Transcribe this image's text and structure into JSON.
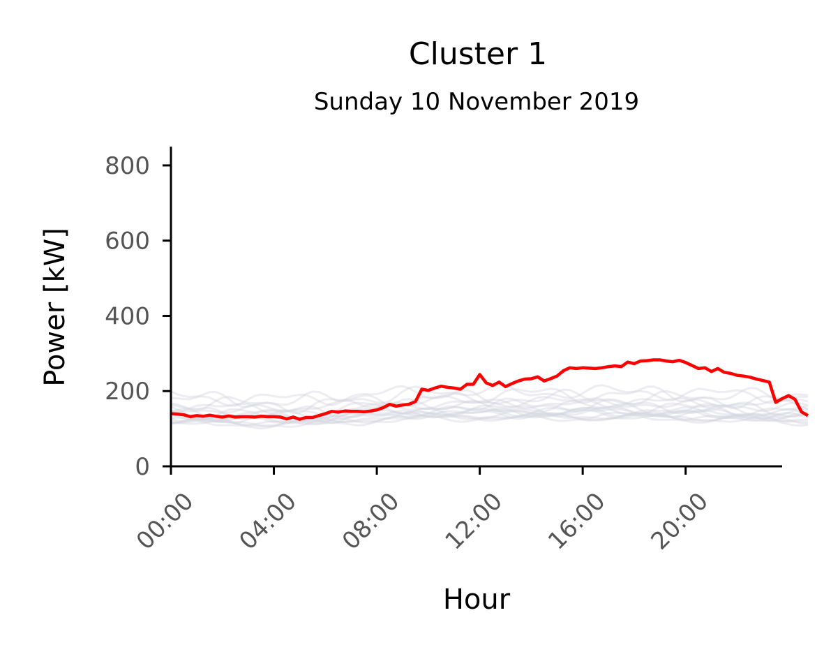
{
  "chart_data": {
    "type": "line",
    "title": "Cluster 1",
    "subtitle": "Sunday 10 November 2019",
    "xlabel": "Hour",
    "ylabel": "Power [kW]",
    "xlim": [
      0,
      23.75
    ],
    "ylim": [
      0,
      850
    ],
    "x_ticks": [
      "00:00",
      "04:00",
      "08:00",
      "12:00",
      "16:00",
      "20:00"
    ],
    "x_tick_values": [
      0,
      4,
      8,
      12,
      16,
      20
    ],
    "y_ticks": [
      0,
      200,
      400,
      600,
      800
    ],
    "grid": false,
    "colors": {
      "highlight": "#ff0000",
      "background_series": "#d4d4e0",
      "axis": "#000000",
      "tick_label": "#555555"
    },
    "series": [
      {
        "role": "highlight",
        "interval_minutes": 15,
        "x_start_hour": 0,
        "values": [
          140,
          139,
          137,
          132,
          135,
          133,
          136,
          133,
          131,
          134,
          131,
          132,
          132,
          131,
          133,
          132,
          132,
          131,
          126,
          131,
          125,
          130,
          130,
          135,
          140,
          146,
          144,
          147,
          146,
          146,
          145,
          147,
          150,
          156,
          165,
          160,
          163,
          165,
          172,
          205,
          202,
          208,
          213,
          210,
          208,
          205,
          218,
          218,
          244,
          222,
          215,
          224,
          212,
          220,
          227,
          232,
          233,
          238,
          227,
          233,
          240,
          254,
          262,
          260,
          262,
          261,
          260,
          262,
          265,
          267,
          265,
          277,
          273,
          280,
          281,
          283,
          283,
          280,
          278,
          282,
          276,
          268,
          260,
          262,
          252,
          260,
          250,
          247,
          242,
          240,
          237,
          232,
          228,
          224,
          170,
          180,
          188,
          178,
          145,
          135
        ]
      },
      {
        "role": "background",
        "interval_minutes": 15,
        "x_start_hour": 0,
        "bands": [
          {
            "offset": 0,
            "amp": 14
          },
          {
            "offset": 5,
            "amp": 16
          },
          {
            "offset": 10,
            "amp": 18
          },
          {
            "offset": -4,
            "amp": 12
          },
          {
            "offset": 15,
            "amp": 20
          },
          {
            "offset": 20,
            "amp": 22
          },
          {
            "offset": -8,
            "amp": 10
          },
          {
            "offset": 25,
            "amp": 24
          },
          {
            "offset": 30,
            "amp": 18
          },
          {
            "offset": 35,
            "amp": 20
          },
          {
            "offset": -10,
            "amp": 12
          },
          {
            "offset": 8,
            "amp": 14
          },
          {
            "offset": 45,
            "amp": 28
          },
          {
            "offset": 55,
            "amp": 30
          },
          {
            "offset": 60,
            "amp": 26
          },
          {
            "offset": 2,
            "amp": 16
          }
        ],
        "baseline": [
          125,
          124,
          124,
          123,
          123,
          122,
          122,
          121,
          121,
          121,
          120,
          120,
          120,
          120,
          119,
          119,
          119,
          119,
          118,
          118,
          118,
          119,
          120,
          121,
          122,
          123,
          124,
          126,
          127,
          128,
          129,
          130,
          131,
          132,
          133,
          134,
          135,
          135,
          136,
          137,
          137,
          137,
          137,
          137,
          137,
          137,
          137,
          137,
          137,
          137,
          137,
          137,
          137,
          137,
          137,
          137,
          137,
          137,
          137,
          137,
          137,
          137,
          137,
          137,
          137,
          137,
          137,
          137,
          137,
          137,
          137,
          137,
          137,
          137,
          137,
          136,
          136,
          136,
          135,
          135,
          135,
          134,
          134,
          133,
          133,
          132,
          132,
          131,
          131,
          130,
          130,
          130,
          129,
          129,
          129,
          128,
          128,
          128,
          127,
          127
        ]
      }
    ]
  }
}
